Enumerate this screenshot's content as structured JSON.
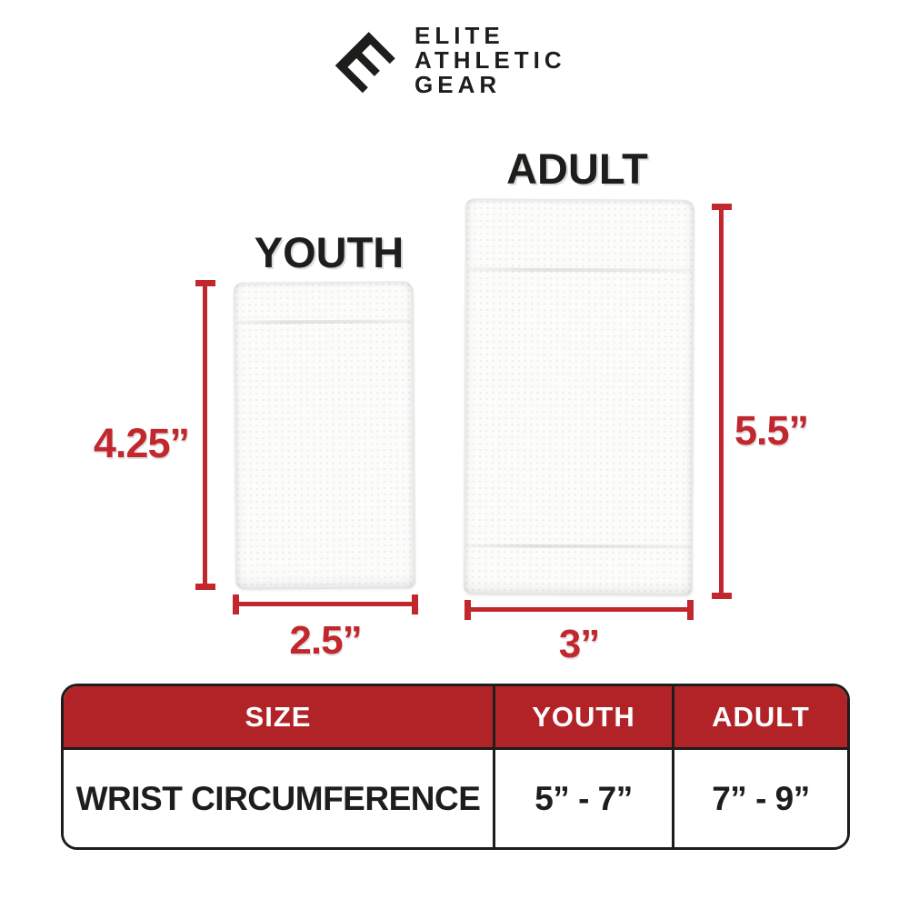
{
  "logo": {
    "mark_letter": "E",
    "lines": [
      "ELITE",
      "ATHLETIC",
      "GEAR"
    ]
  },
  "products": {
    "youth": {
      "label": "YOUTH",
      "height_label": "4.25”",
      "width_label": "2.5”"
    },
    "adult": {
      "label": "ADULT",
      "height_label": "5.5”",
      "width_label": "3”"
    }
  },
  "size_table": {
    "headers": [
      "SIZE",
      "YOUTH",
      "ADULT"
    ],
    "rows": [
      [
        "WRIST CIRCUMFERENCE",
        "5” - 7”",
        "7” - 9”"
      ]
    ]
  },
  "colors": {
    "dimension_red": "#C1272D",
    "table_header_red": "#B22328",
    "text_black": "#1D1D1B"
  }
}
